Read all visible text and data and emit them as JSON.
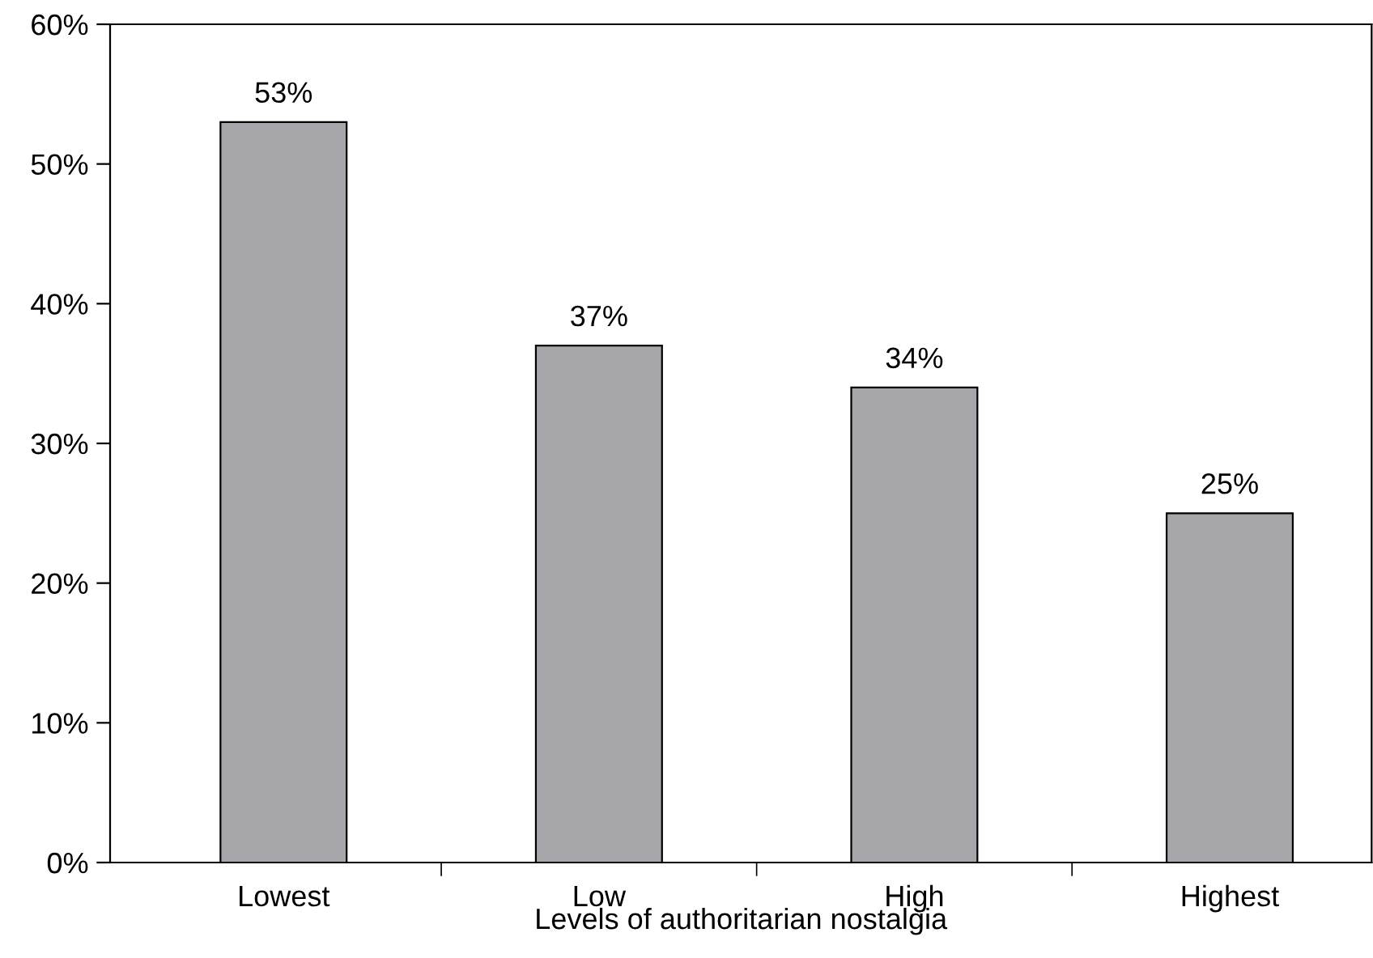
{
  "chart_data": {
    "type": "bar",
    "xlabel": "Levels of authoritarian nostalgia",
    "categories": [
      "Lowest",
      "Low",
      "High",
      "Highest"
    ],
    "values": [
      53,
      37,
      34,
      25
    ],
    "color": "#a7a7ab",
    "value_labels": [
      "53%",
      "37%",
      "34%",
      "25%"
    ],
    "ylim": [
      0,
      60
    ],
    "yticks": [
      {
        "value": 0,
        "label": "0%"
      },
      {
        "value": 10,
        "label": "10%"
      },
      {
        "value": 20,
        "label": "20%"
      },
      {
        "value": 30,
        "label": "30%"
      },
      {
        "value": 40,
        "label": "40%"
      },
      {
        "value": 50,
        "label": "50%"
      },
      {
        "value": 60,
        "label": "60%"
      }
    ],
    "grid": false
  }
}
